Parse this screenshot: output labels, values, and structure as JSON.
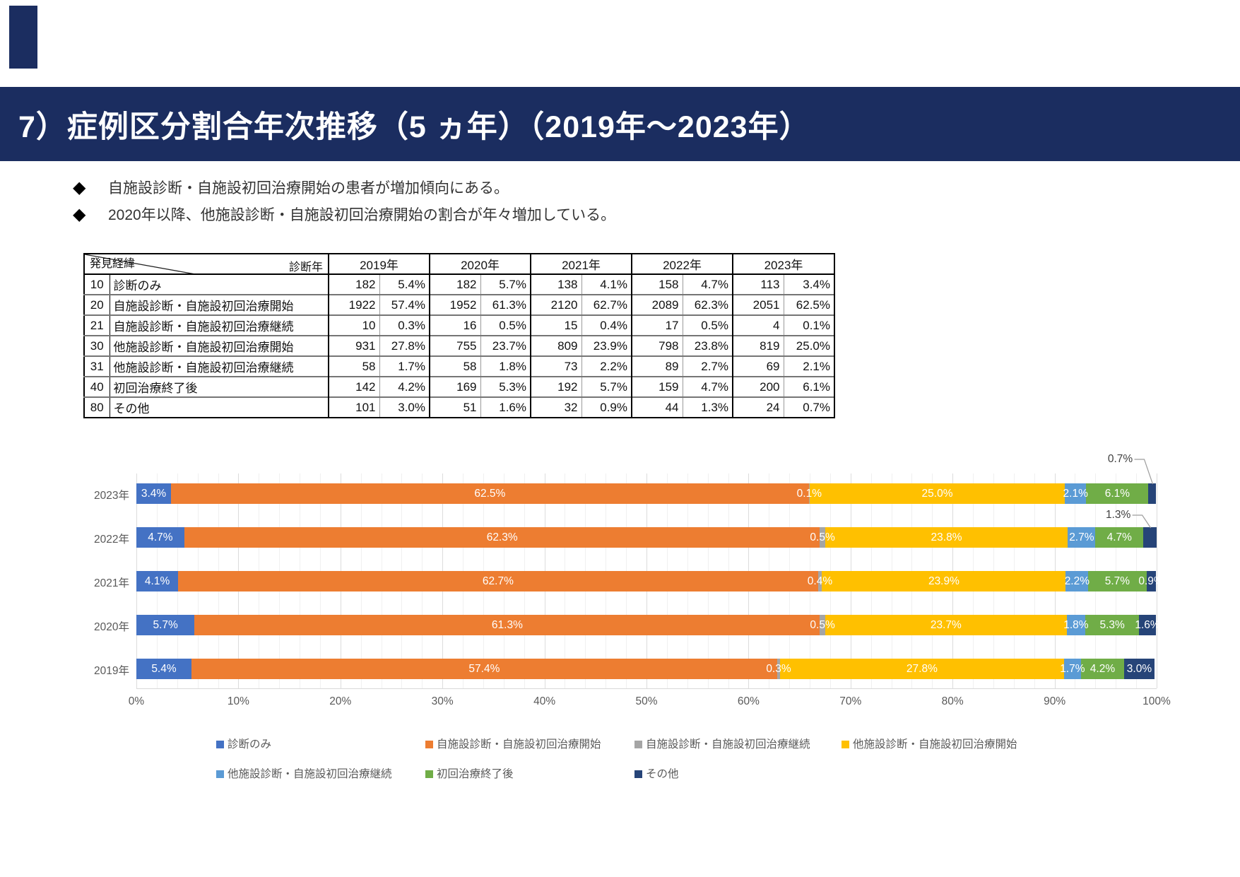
{
  "header": {
    "title": "7）症例区分割合年次推移（5 ヵ年）（2019年～2023年）"
  },
  "bullet_marker": "◆",
  "bullets": [
    "自施設診断・自施設初回治療開始の患者が増加傾向にある。",
    "2020年以降、他施設診断・自施設初回治療開始の割合が年々増加している。"
  ],
  "table": {
    "corner": {
      "top_right": "診断年",
      "bottom_left": "発見経緯"
    },
    "year_headers": [
      "2019年",
      "2020年",
      "2021年",
      "2022年",
      "2023年"
    ],
    "rows": [
      {
        "code": "10",
        "label": "診断のみ",
        "values": [
          [
            "182",
            "5.4%"
          ],
          [
            "182",
            "5.7%"
          ],
          [
            "138",
            "4.1%"
          ],
          [
            "158",
            "4.7%"
          ],
          [
            "113",
            "3.4%"
          ]
        ]
      },
      {
        "code": "20",
        "label": "自施設診断・自施設初回治療開始",
        "values": [
          [
            "1922",
            "57.4%"
          ],
          [
            "1952",
            "61.3%"
          ],
          [
            "2120",
            "62.7%"
          ],
          [
            "2089",
            "62.3%"
          ],
          [
            "2051",
            "62.5%"
          ]
        ]
      },
      {
        "code": "21",
        "label": "自施設診断・自施設初回治療継続",
        "values": [
          [
            "10",
            "0.3%"
          ],
          [
            "16",
            "0.5%"
          ],
          [
            "15",
            "0.4%"
          ],
          [
            "17",
            "0.5%"
          ],
          [
            "4",
            "0.1%"
          ]
        ]
      },
      {
        "code": "30",
        "label": "他施設診断・自施設初回治療開始",
        "values": [
          [
            "931",
            "27.8%"
          ],
          [
            "755",
            "23.7%"
          ],
          [
            "809",
            "23.9%"
          ],
          [
            "798",
            "23.8%"
          ],
          [
            "819",
            "25.0%"
          ]
        ]
      },
      {
        "code": "31",
        "label": "他施設診断・自施設初回治療継続",
        "values": [
          [
            "58",
            "1.7%"
          ],
          [
            "58",
            "1.8%"
          ],
          [
            "73",
            "2.2%"
          ],
          [
            "89",
            "2.7%"
          ],
          [
            "69",
            "2.1%"
          ]
        ]
      },
      {
        "code": "40",
        "label": "初回治療終了後",
        "values": [
          [
            "142",
            "4.2%"
          ],
          [
            "169",
            "5.3%"
          ],
          [
            "192",
            "5.7%"
          ],
          [
            "159",
            "4.7%"
          ],
          [
            "200",
            "6.1%"
          ]
        ]
      },
      {
        "code": "80",
        "label": "その他",
        "values": [
          [
            "101",
            "3.0%"
          ],
          [
            "51",
            "1.6%"
          ],
          [
            "32",
            "0.9%"
          ],
          [
            "44",
            "1.3%"
          ],
          [
            "24",
            "0.7%"
          ]
        ]
      }
    ]
  },
  "chart_data": {
    "type": "bar",
    "stacked": true,
    "orientation": "horizontal",
    "categories": [
      "2023年",
      "2022年",
      "2021年",
      "2020年",
      "2019年"
    ],
    "series": [
      {
        "name": "診断のみ",
        "color": "#4472C4",
        "values": [
          3.4,
          4.7,
          4.1,
          5.7,
          5.4
        ]
      },
      {
        "name": "自施設診断・自施設初回治療開始",
        "color": "#ED7D31",
        "values": [
          62.5,
          62.3,
          62.7,
          61.3,
          57.4
        ]
      },
      {
        "name": "自施設診断・自施設初回治療継続",
        "color": "#A5A5A5",
        "values": [
          0.1,
          0.5,
          0.4,
          0.5,
          0.3
        ]
      },
      {
        "name": "他施設診断・自施設初回治療開始",
        "color": "#FFC000",
        "values": [
          25.0,
          23.8,
          23.9,
          23.7,
          27.8
        ]
      },
      {
        "name": "他施設診断・自施設初回治療継続",
        "color": "#5B9BD5",
        "values": [
          2.1,
          2.7,
          2.2,
          1.8,
          1.7
        ]
      },
      {
        "name": "初回治療終了後",
        "color": "#70AD47",
        "values": [
          6.1,
          4.7,
          5.7,
          5.3,
          4.2
        ]
      },
      {
        "name": "その他",
        "color": "#264478",
        "values": [
          0.7,
          1.3,
          0.9,
          1.6,
          3.0
        ]
      }
    ],
    "xticks": [
      "0%",
      "10%",
      "20%",
      "30%",
      "40%",
      "50%",
      "60%",
      "70%",
      "80%",
      "90%",
      "100%"
    ],
    "xlim": [
      0,
      100
    ],
    "grid": true,
    "legend_position": "bottom",
    "callouts": [
      {
        "category": "2023年",
        "series": "その他",
        "text": "0.7%"
      },
      {
        "category": "2022年",
        "series": "その他",
        "text": "1.3%"
      }
    ],
    "legend_rows": [
      [
        "診断のみ",
        "自施設診断・自施設初回治療開始",
        "自施設診断・自施設初回治療継続",
        "他施設診断・自施設初回治療開始"
      ],
      [
        "他施設診断・自施設初回治療継続",
        "初回治療終了後",
        "その他"
      ]
    ]
  },
  "colors": {
    "title_bar": "#1B2D60",
    "axis_text": "#595959",
    "gridline": "#DCDCDC"
  }
}
